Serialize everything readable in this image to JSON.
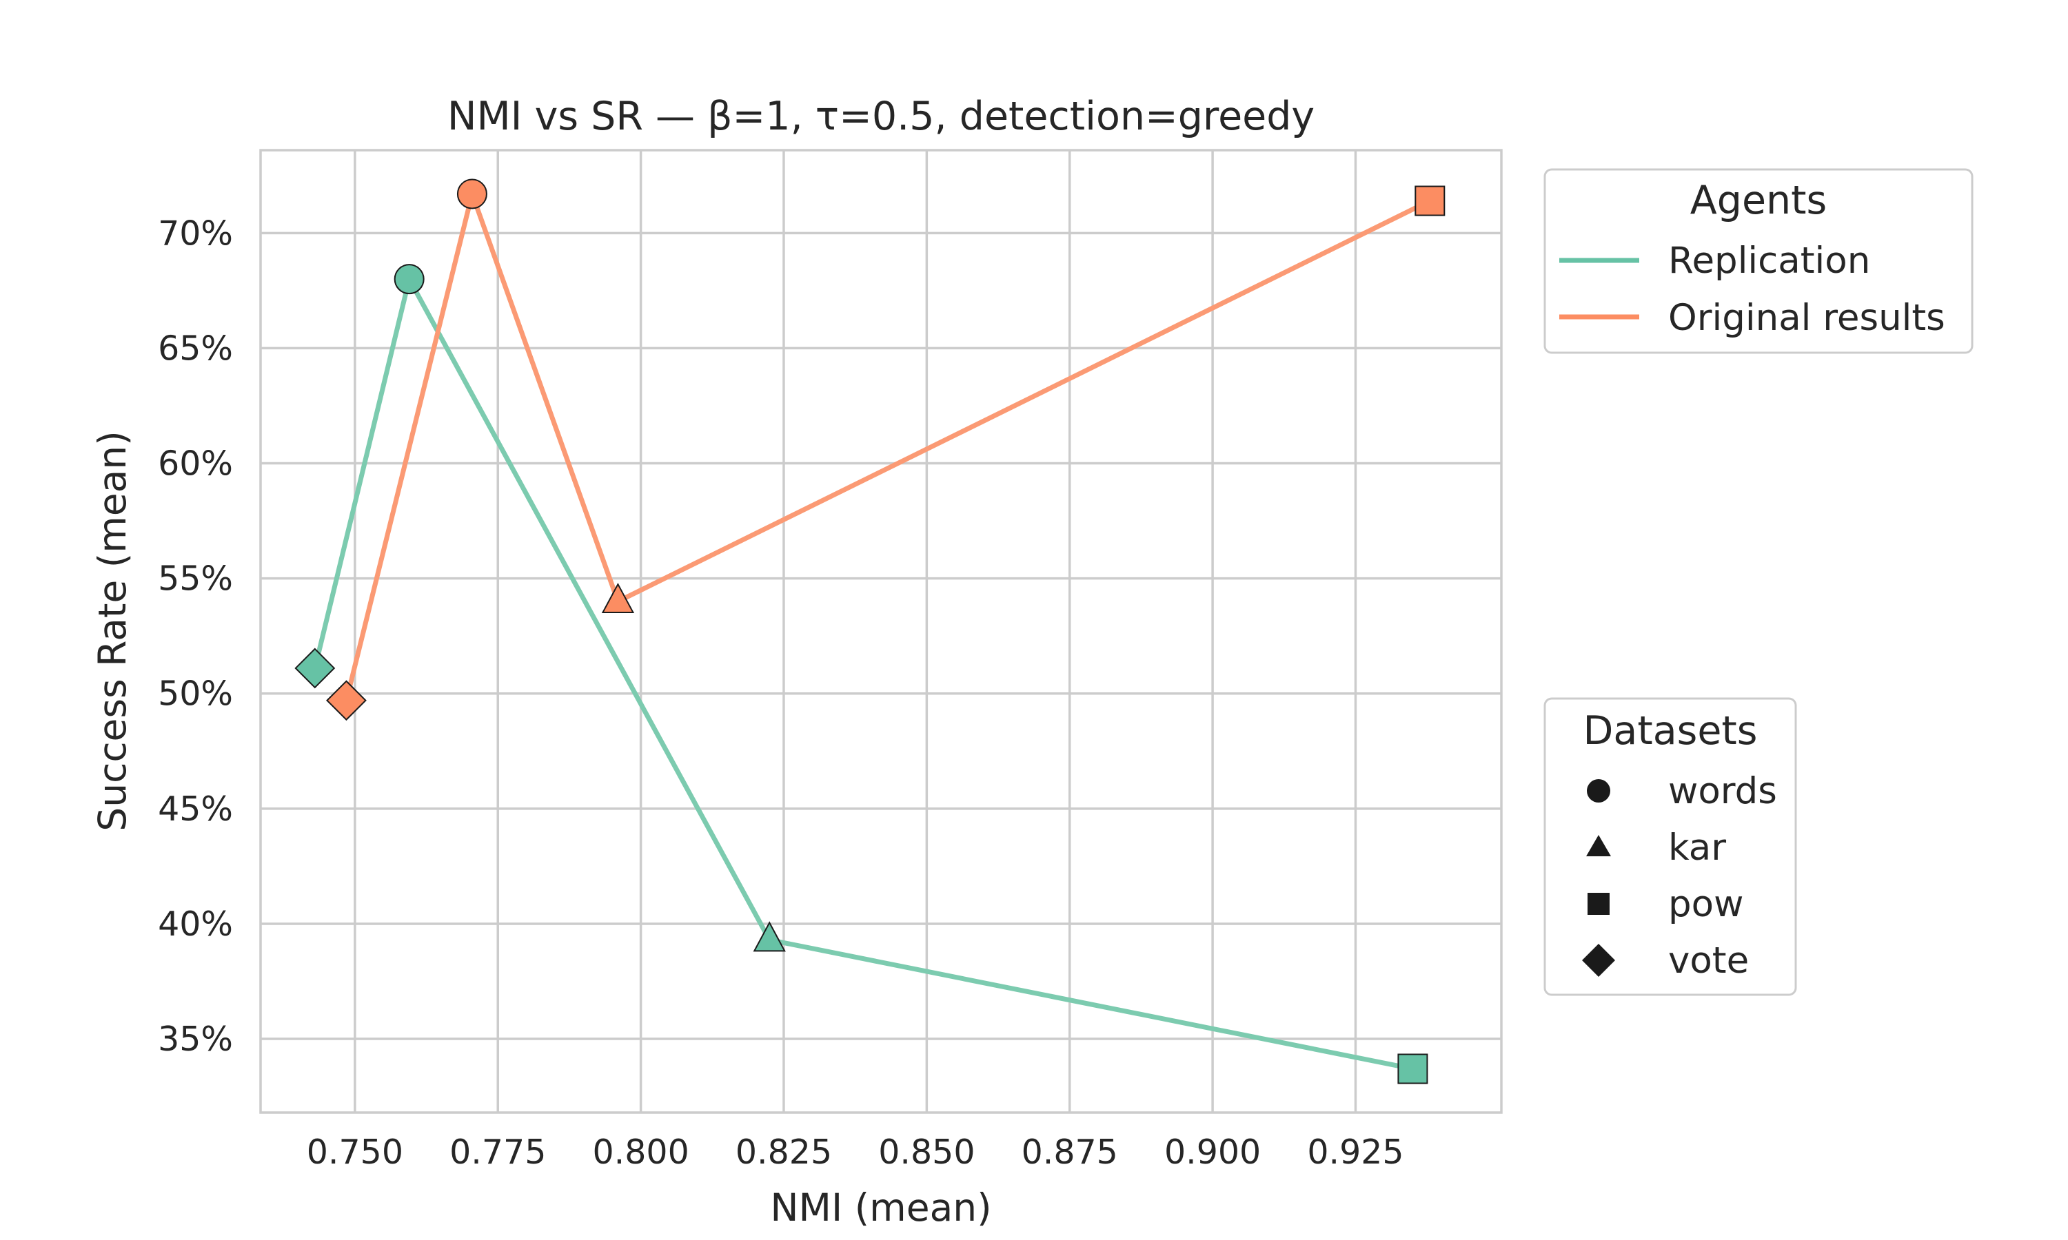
{
  "chart_data": {
    "type": "line",
    "title": "NMI vs SR — β=1, τ=0.5, detection=greedy",
    "xlabel": "NMI (mean)",
    "ylabel": "Success Rate (mean)",
    "xlim": [
      0.7335,
      0.9505
    ],
    "ylim": [
      31.8,
      73.6
    ],
    "xticks": [
      0.75,
      0.775,
      0.8,
      0.825,
      0.85,
      0.875,
      0.9,
      0.925
    ],
    "xtick_labels": [
      "0.750",
      "0.775",
      "0.800",
      "0.825",
      "0.850",
      "0.875",
      "0.900",
      "0.925"
    ],
    "yticks": [
      35,
      40,
      45,
      50,
      55,
      60,
      65,
      70
    ],
    "ytick_labels": [
      "35%",
      "40%",
      "45%",
      "50%",
      "55%",
      "60%",
      "65%",
      "70%"
    ],
    "grid": true,
    "series": [
      {
        "name": "Replication",
        "color": "#66c2a5",
        "line_color": "#7ccbaf",
        "points": [
          {
            "dataset": "vote",
            "x": 0.743,
            "y": 51.1
          },
          {
            "dataset": "words",
            "x": 0.7595,
            "y": 68.0
          },
          {
            "dataset": "kar",
            "x": 0.8225,
            "y": 39.3
          },
          {
            "dataset": "pow",
            "x": 0.935,
            "y": 33.7
          }
        ]
      },
      {
        "name": "Original results",
        "color": "#fc8d62",
        "line_color": "#fb9a74",
        "points": [
          {
            "dataset": "vote",
            "x": 0.7485,
            "y": 49.7
          },
          {
            "dataset": "words",
            "x": 0.7705,
            "y": 71.7
          },
          {
            "dataset": "kar",
            "x": 0.796,
            "y": 54.0
          },
          {
            "dataset": "pow",
            "x": 0.938,
            "y": 71.4
          }
        ]
      }
    ],
    "legend_agents": {
      "title": "Agents",
      "placement": "outside-top-right",
      "items": [
        {
          "label": "Replication",
          "color": "#66c2a5"
        },
        {
          "label": "Original results",
          "color": "#fc8d62"
        }
      ]
    },
    "legend_datasets": {
      "title": "Datasets",
      "placement": "outside-right",
      "items": [
        {
          "label": "words",
          "marker": "circle"
        },
        {
          "label": "kar",
          "marker": "triangle"
        },
        {
          "label": "pow",
          "marker": "square"
        },
        {
          "label": "vote",
          "marker": "diamond"
        }
      ]
    }
  }
}
